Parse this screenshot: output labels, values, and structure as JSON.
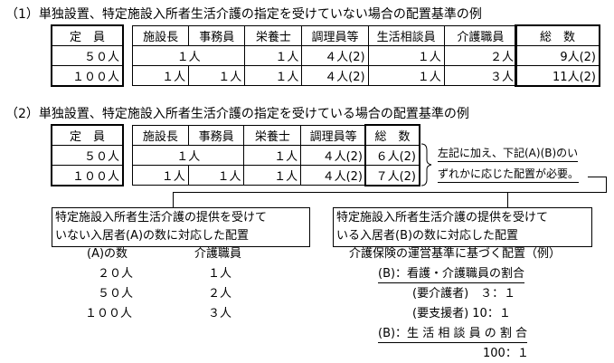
{
  "section1": {
    "title": "（1）単独設置、特定施設入所者生活介護の指定を受けていない場合の配置基準の例",
    "capacity_header": "定　員",
    "headers": [
      "施設長",
      "事務員",
      "栄養士",
      "調理員等",
      "生活相談員",
      "介護職員"
    ],
    "total_header": "総　数",
    "rows": [
      {
        "capacity": "５０人",
        "merged": "１人",
        "cells": [
          "１人",
          "４人(2)",
          "１人",
          "２人"
        ],
        "total": "9人(2)"
      },
      {
        "capacity": "１００人",
        "cells": [
          "１人",
          "１人",
          "１人",
          "４人(2)",
          "１人",
          "３人"
        ],
        "total": "11人(2)"
      }
    ]
  },
  "section2": {
    "title": "（2）単独設置、特定施設入所者生活介護の指定を受けている場合の配置基準の例",
    "capacity_header": "定　員",
    "headers": [
      "施設長",
      "事務員",
      "栄養士",
      "調理員等"
    ],
    "total_header": "総　数",
    "rows": [
      {
        "capacity": "５０人",
        "merged": "１人",
        "cells": [
          "１人",
          "４人(2)"
        ],
        "total": "６人(2)"
      },
      {
        "capacity": "１００人",
        "cells": [
          "１人",
          "１人",
          "１人",
          "４人(2)"
        ],
        "total": "７人(2)"
      }
    ],
    "note_line1": "左記に加え、下記(A)(B)のい",
    "note_line2": "ずれかに応じた配置が必要。"
  },
  "option_a": {
    "box_line1": "特定施設入所者生活介護の提供を受けて",
    "box_line2": "いない入居者(A)の数に対応した配置",
    "col1_header": "(A)の数",
    "col2_header": "介護職員",
    "rows": [
      [
        "２０人",
        "１人"
      ],
      [
        "５０人",
        "２人"
      ],
      [
        "１００人",
        "３人"
      ]
    ]
  },
  "option_b": {
    "box_line1": "特定施設入所者生活介護の提供を受けて",
    "box_line2": "いる入居者(B)の数に対応した配置",
    "heading": "介護保険の運営基準に基づく配置（例）",
    "ratio1_title": "(B)：看護・介護職員の割合",
    "ratio1_a": "(要介護者)　３：１",
    "ratio1_b": "(要支援者) 10：１",
    "ratio2_title": "(B)：生 活 相 談 員 の 割 合",
    "ratio2_value": "100：１"
  }
}
